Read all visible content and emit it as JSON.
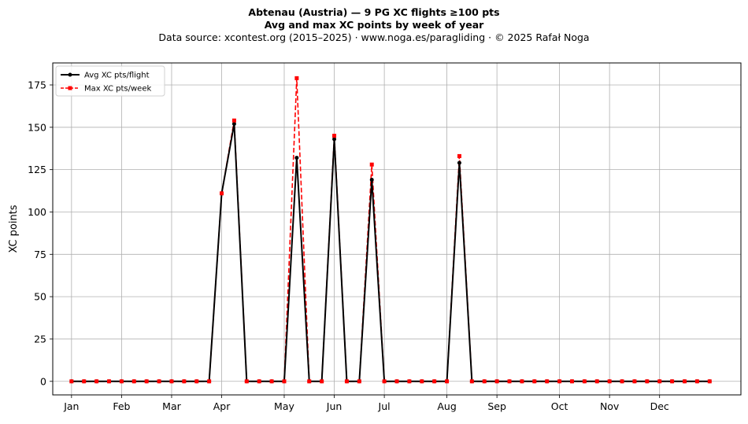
{
  "header": {
    "title": "Abtenau (Austria)  —  9 PG XC flights ≥100 pts",
    "subtitle": "Avg and max XC points by week of year",
    "source": "Data source: xcontest.org (2015–2025)  ·  www.noga.es/paragliding  ·  © 2025 Rafał Noga"
  },
  "chart_data": {
    "type": "line",
    "title": "Abtenau (Austria)  —  9 PG XC flights ≥100 pts",
    "subtitle": "Avg and max XC points by week of year",
    "xlabel": "",
    "ylabel": "XC points",
    "x_unit": "week of year",
    "xlim": [
      -1.5,
      53.5
    ],
    "ylim": [
      -8,
      188
    ],
    "yticks": [
      0,
      25,
      50,
      75,
      100,
      125,
      150,
      175
    ],
    "month_ticks": [
      {
        "label": "Jan",
        "week": 0
      },
      {
        "label": "Feb",
        "week": 4
      },
      {
        "label": "Mar",
        "week": 8
      },
      {
        "label": "Apr",
        "week": 12
      },
      {
        "label": "May",
        "week": 17
      },
      {
        "label": "Jun",
        "week": 21
      },
      {
        "label": "Jul",
        "week": 25
      },
      {
        "label": "Aug",
        "week": 30
      },
      {
        "label": "Sep",
        "week": 34
      },
      {
        "label": "Oct",
        "week": 39
      },
      {
        "label": "Nov",
        "week": 43
      },
      {
        "label": "Dec",
        "week": 47
      }
    ],
    "grid": true,
    "legend_position": "top-left",
    "weeks": [
      0,
      1,
      2,
      3,
      4,
      5,
      6,
      7,
      8,
      9,
      10,
      11,
      12,
      13,
      14,
      15,
      16,
      17,
      18,
      19,
      20,
      21,
      22,
      23,
      24,
      25,
      26,
      27,
      28,
      29,
      30,
      31,
      32,
      33,
      34,
      35,
      36,
      37,
      38,
      39,
      40,
      41,
      42,
      43,
      44,
      45,
      46,
      47,
      48,
      49,
      50,
      51
    ],
    "series": [
      {
        "name": "Avg XC pts/flight",
        "color": "#000000",
        "style": "solid",
        "marker": "circle",
        "values": [
          0,
          0,
          0,
          0,
          0,
          0,
          0,
          0,
          0,
          0,
          0,
          0,
          111,
          152,
          0,
          0,
          0,
          0,
          132,
          0,
          0,
          143,
          0,
          0,
          119,
          0,
          0,
          0,
          0,
          0,
          0,
          129,
          0,
          0,
          0,
          0,
          0,
          0,
          0,
          0,
          0,
          0,
          0,
          0,
          0,
          0,
          0,
          0,
          0,
          0,
          0,
          0
        ]
      },
      {
        "name": "Max XC pts/week",
        "color": "#ff0000",
        "style": "dashed",
        "marker": "square",
        "values": [
          0,
          0,
          0,
          0,
          0,
          0,
          0,
          0,
          0,
          0,
          0,
          0,
          111,
          154,
          0,
          0,
          0,
          0,
          179,
          0,
          0,
          145,
          0,
          0,
          128,
          0,
          0,
          0,
          0,
          0,
          0,
          133,
          0,
          0,
          0,
          0,
          0,
          0,
          0,
          0,
          0,
          0,
          0,
          0,
          0,
          0,
          0,
          0,
          0,
          0,
          0,
          0
        ]
      }
    ]
  }
}
